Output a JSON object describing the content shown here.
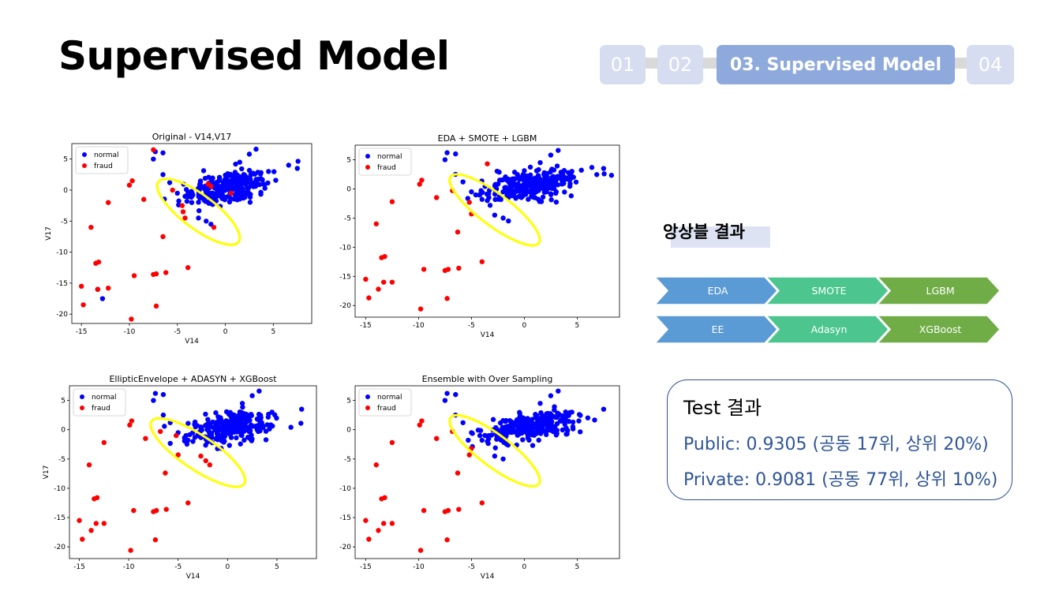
{
  "page": {
    "title": "Supervised Model"
  },
  "nav": {
    "steps": [
      {
        "label": "01",
        "active": false
      },
      {
        "label": "02",
        "active": false
      },
      {
        "label": "03. Supervised Model",
        "active": true
      },
      {
        "label": "04",
        "active": false
      }
    ]
  },
  "chart_data": [
    {
      "type": "scatter",
      "title": "Original - V14,V17",
      "xlabel": "V14",
      "ylabel": "V17",
      "xlim": [
        -16,
        9
      ],
      "ylim": [
        -21.5,
        7.5
      ],
      "xticks": [
        -15,
        -10,
        -5,
        0,
        5
      ],
      "yticks": [
        5,
        0,
        -5,
        -10,
        -15,
        -20
      ],
      "legend": {
        "placement": "upper-left",
        "entries": [
          "normal",
          "fraud"
        ]
      },
      "annotation_ellipse": {
        "center": [
          -2.8,
          -3.5
        ],
        "rx": 3.6,
        "ry": 1.5,
        "angle_deg": -37,
        "color": "#ffff00"
      },
      "series": [
        {
          "name": "normal",
          "color": "#0000ff",
          "cluster": {
            "cx": 0.5,
            "cy": 0.5,
            "sx": 2.2,
            "sy": 1.6,
            "count": 260
          },
          "points": [
            [
              -7.3,
              6.2
            ],
            [
              -6.5,
              6.0
            ],
            [
              -7.5,
              5.0
            ],
            [
              -6.5,
              2.5
            ],
            [
              -5.8,
              1.2
            ],
            [
              -4.2,
              -1.0
            ],
            [
              -3.5,
              -2.0
            ],
            [
              -2.8,
              -4.5
            ],
            [
              -2.0,
              -5.0
            ],
            [
              -1.5,
              -5.5
            ],
            [
              -13.3,
              -16.0
            ],
            [
              -12.8,
              -17.5
            ],
            [
              -5.0,
              -0.5
            ],
            [
              -4.0,
              -1.8
            ],
            [
              1.5,
              4.5
            ],
            [
              2.5,
              5.8
            ],
            [
              3.2,
              6.6
            ],
            [
              4.5,
              3.0
            ],
            [
              7.5,
              3.5
            ]
          ]
        },
        {
          "name": "fraud",
          "color": "#ff0000",
          "points": [
            [
              -7.5,
              6.5
            ],
            [
              -10.0,
              0.8
            ],
            [
              -9.7,
              1.5
            ],
            [
              -8.5,
              -1.5
            ],
            [
              -12.2,
              -2.0
            ],
            [
              -14.0,
              -6.0
            ],
            [
              -13.5,
              -11.8
            ],
            [
              -13.2,
              -11.6
            ],
            [
              -6.5,
              -7.5
            ],
            [
              -4.5,
              -2.5
            ],
            [
              -4.4,
              -3.5
            ],
            [
              -4.2,
              -4.5
            ],
            [
              -15.0,
              -15.5
            ],
            [
              -13.3,
              -16.0
            ],
            [
              -12.2,
              -15.8
            ],
            [
              -14.8,
              -18.5
            ],
            [
              -9.8,
              -20.8
            ],
            [
              -9.5,
              -13.8
            ],
            [
              -7.5,
              -13.6
            ],
            [
              -7.2,
              -13.5
            ],
            [
              -6.2,
              -13.3
            ],
            [
              -3.9,
              -12.5
            ],
            [
              -7.2,
              -18.7
            ],
            [
              -1.8,
              1.0
            ],
            [
              -1.5,
              0.6
            ],
            [
              0.6,
              -0.5
            ],
            [
              -1.2,
              -6.0
            ],
            [
              -5.5,
              0.0
            ]
          ]
        }
      ]
    },
    {
      "type": "scatter",
      "title": "EDA + SMOTE + LGBM",
      "xlabel": "V14",
      "ylabel": "",
      "xlim": [
        -16,
        9
      ],
      "ylim": [
        -22,
        7.5
      ],
      "xticks": [
        -15,
        -10,
        -5,
        0,
        5
      ],
      "yticks": [
        5,
        0,
        -5,
        -10,
        -15,
        -20
      ],
      "legend": {
        "placement": "upper-left",
        "entries": [
          "normal",
          "fraud"
        ]
      },
      "annotation_ellipse": {
        "center": [
          -2.8,
          -3.6
        ],
        "rx": 3.6,
        "ry": 1.5,
        "angle_deg": -37,
        "color": "#ffff00"
      },
      "series": [
        {
          "name": "normal",
          "color": "#0000ff",
          "cluster": {
            "cx": 0.5,
            "cy": 0.5,
            "sx": 2.2,
            "sy": 1.6,
            "count": 260
          },
          "points": [
            [
              -7.3,
              6.2
            ],
            [
              -6.5,
              6.0
            ],
            [
              -7.5,
              5.0
            ],
            [
              -6.5,
              2.5
            ],
            [
              -5.8,
              1.2
            ],
            [
              -4.2,
              -1.0
            ],
            [
              -3.5,
              -2.0
            ],
            [
              -2.8,
              -4.5
            ],
            [
              -2.0,
              -5.0
            ],
            [
              -1.5,
              -5.5
            ],
            [
              -5.0,
              -0.5
            ],
            [
              -4.0,
              -1.8
            ],
            [
              1.5,
              4.5
            ],
            [
              2.5,
              5.8
            ],
            [
              3.2,
              6.6
            ],
            [
              4.5,
              3.0
            ],
            [
              7.5,
              3.5
            ]
          ]
        },
        {
          "name": "fraud",
          "color": "#ff0000",
          "points": [
            [
              -3.5,
              4.3
            ],
            [
              -9.7,
              1.5
            ],
            [
              -9.9,
              0.8
            ],
            [
              -6.8,
              -0.3
            ],
            [
              -8.3,
              -1.5
            ],
            [
              -12.5,
              -2.2
            ],
            [
              -5.2,
              -2.3
            ],
            [
              -5.0,
              -4.3
            ],
            [
              -6.3,
              -7.4
            ],
            [
              -14.0,
              -6.0
            ],
            [
              -13.5,
              -11.8
            ],
            [
              -13.2,
              -11.6
            ],
            [
              -4.0,
              -12.5
            ],
            [
              -15.0,
              -15.5
            ],
            [
              -13.3,
              -16.0
            ],
            [
              -12.5,
              -16.0
            ],
            [
              -14.7,
              -18.7
            ],
            [
              -13.8,
              -17.2
            ],
            [
              -9.8,
              -20.6
            ],
            [
              -9.5,
              -13.8
            ],
            [
              -7.5,
              -14.0
            ],
            [
              -7.2,
              -13.8
            ],
            [
              -6.2,
              -13.6
            ],
            [
              -7.3,
              -18.8
            ]
          ]
        }
      ]
    },
    {
      "type": "scatter",
      "title": "EllipticEnvelope + ADASYN + XGBoost",
      "xlabel": "V14",
      "ylabel": "V17",
      "xlim": [
        -16,
        9
      ],
      "ylim": [
        -22,
        7.5
      ],
      "xticks": [
        -15,
        -10,
        -5,
        0,
        5
      ],
      "yticks": [
        5,
        0,
        -5,
        -10,
        -15,
        -20
      ],
      "legend": {
        "placement": "upper-left",
        "entries": [
          "normal",
          "fraud"
        ]
      },
      "annotation_ellipse": {
        "center": [
          -3.0,
          -3.9
        ],
        "rx": 3.9,
        "ry": 1.6,
        "angle_deg": -34,
        "color": "#ffff00"
      },
      "series": [
        {
          "name": "normal",
          "color": "#0000ff",
          "cluster": {
            "cx": 0.5,
            "cy": 0.5,
            "sx": 2.2,
            "sy": 1.6,
            "count": 260
          },
          "points": [
            [
              -7.3,
              6.2
            ],
            [
              -6.5,
              6.0
            ],
            [
              -7.5,
              5.0
            ],
            [
              -6.5,
              2.5
            ],
            [
              -5.8,
              1.2
            ],
            [
              -4.2,
              -1.0
            ],
            [
              -3.5,
              -2.0
            ],
            [
              -5.0,
              -0.5
            ],
            [
              -4.0,
              -1.8
            ],
            [
              1.5,
              4.5
            ],
            [
              2.5,
              5.8
            ],
            [
              3.2,
              6.6
            ],
            [
              4.5,
              3.0
            ],
            [
              7.5,
              3.5
            ]
          ]
        },
        {
          "name": "fraud",
          "color": "#ff0000",
          "points": [
            [
              -9.7,
              1.5
            ],
            [
              -9.9,
              0.8
            ],
            [
              -6.8,
              -0.3
            ],
            [
              -8.3,
              -1.5
            ],
            [
              -12.5,
              -2.2
            ],
            [
              -5.2,
              -1.0
            ],
            [
              -5.0,
              -4.3
            ],
            [
              -2.7,
              -4.5
            ],
            [
              -2.2,
              -5.3
            ],
            [
              -1.8,
              -6.0
            ],
            [
              -6.3,
              -7.4
            ],
            [
              -14.0,
              -6.0
            ],
            [
              -13.5,
              -11.8
            ],
            [
              -13.2,
              -11.6
            ],
            [
              -4.0,
              -12.5
            ],
            [
              -15.0,
              -15.5
            ],
            [
              -13.3,
              -16.0
            ],
            [
              -12.5,
              -16.0
            ],
            [
              -14.7,
              -18.7
            ],
            [
              -13.8,
              -17.2
            ],
            [
              -9.8,
              -20.6
            ],
            [
              -9.5,
              -13.8
            ],
            [
              -7.5,
              -14.0
            ],
            [
              -7.2,
              -13.8
            ],
            [
              -6.2,
              -13.6
            ],
            [
              -7.3,
              -18.8
            ]
          ]
        }
      ]
    },
    {
      "type": "scatter",
      "title": "Ensemble with Over Sampling",
      "xlabel": "V14",
      "ylabel": "",
      "xlim": [
        -16,
        9
      ],
      "ylim": [
        -22,
        7.5
      ],
      "xticks": [
        -15,
        -10,
        -5,
        0,
        5
      ],
      "yticks": [
        5,
        0,
        -5,
        -10,
        -15,
        -20
      ],
      "legend": {
        "placement": "upper-left",
        "entries": [
          "normal",
          "fraud"
        ]
      },
      "annotation_ellipse": {
        "center": [
          -2.8,
          -3.6
        ],
        "rx": 3.6,
        "ry": 1.5,
        "angle_deg": -37,
        "color": "#ffff00"
      },
      "series": [
        {
          "name": "normal",
          "color": "#0000ff",
          "cluster": {
            "cx": 0.5,
            "cy": 0.5,
            "sx": 2.2,
            "sy": 1.6,
            "count": 260
          },
          "points": [
            [
              -7.3,
              6.2
            ],
            [
              -6.5,
              6.0
            ],
            [
              -7.5,
              5.0
            ],
            [
              -6.5,
              2.5
            ],
            [
              -5.8,
              1.2
            ],
            [
              -4.2,
              -1.0
            ],
            [
              -3.5,
              -2.0
            ],
            [
              -2.8,
              -4.5
            ],
            [
              -2.0,
              -5.0
            ],
            [
              -5.0,
              -0.5
            ],
            [
              -4.0,
              -1.8
            ],
            [
              1.5,
              4.5
            ],
            [
              2.5,
              5.8
            ],
            [
              3.2,
              6.6
            ],
            [
              4.5,
              3.0
            ],
            [
              7.5,
              3.5
            ]
          ]
        },
        {
          "name": "fraud",
          "color": "#ff0000",
          "points": [
            [
              -9.7,
              1.5
            ],
            [
              -9.9,
              0.8
            ],
            [
              -6.8,
              -0.3
            ],
            [
              -8.3,
              -1.5
            ],
            [
              -12.5,
              -2.2
            ],
            [
              -5.0,
              -3.2
            ],
            [
              -5.2,
              -4.3
            ],
            [
              -6.3,
              -7.4
            ],
            [
              -14.0,
              -6.0
            ],
            [
              -13.5,
              -11.8
            ],
            [
              -13.2,
              -11.6
            ],
            [
              -4.0,
              -12.5
            ],
            [
              -15.0,
              -15.5
            ],
            [
              -13.3,
              -16.0
            ],
            [
              -12.5,
              -16.0
            ],
            [
              -14.7,
              -18.7
            ],
            [
              -13.8,
              -17.2
            ],
            [
              -9.8,
              -20.6
            ],
            [
              -9.5,
              -13.8
            ],
            [
              -7.5,
              -14.0
            ],
            [
              -7.2,
              -13.8
            ],
            [
              -6.2,
              -13.6
            ],
            [
              -7.3,
              -18.8
            ]
          ]
        }
      ]
    }
  ],
  "ensemble": {
    "label": "앙상블 결과",
    "rows": [
      {
        "steps": [
          {
            "label": "EDA",
            "color": "#5b9bd5"
          },
          {
            "label": "SMOTE",
            "color": "#4cc68e"
          },
          {
            "label": "LGBM",
            "color": "#70ad47"
          }
        ]
      },
      {
        "steps": [
          {
            "label": "EE",
            "color": "#5b9bd5"
          },
          {
            "label": "Adasyn",
            "color": "#4cc68e"
          },
          {
            "label": "XGBoost",
            "color": "#70ad47"
          }
        ]
      }
    ]
  },
  "results": {
    "title": "Test 결과",
    "public": "Public: 0.9305 (공동 17위, 상위 20%)",
    "private": "Private: 0.9081 (공동 77위, 상위 10%)"
  }
}
